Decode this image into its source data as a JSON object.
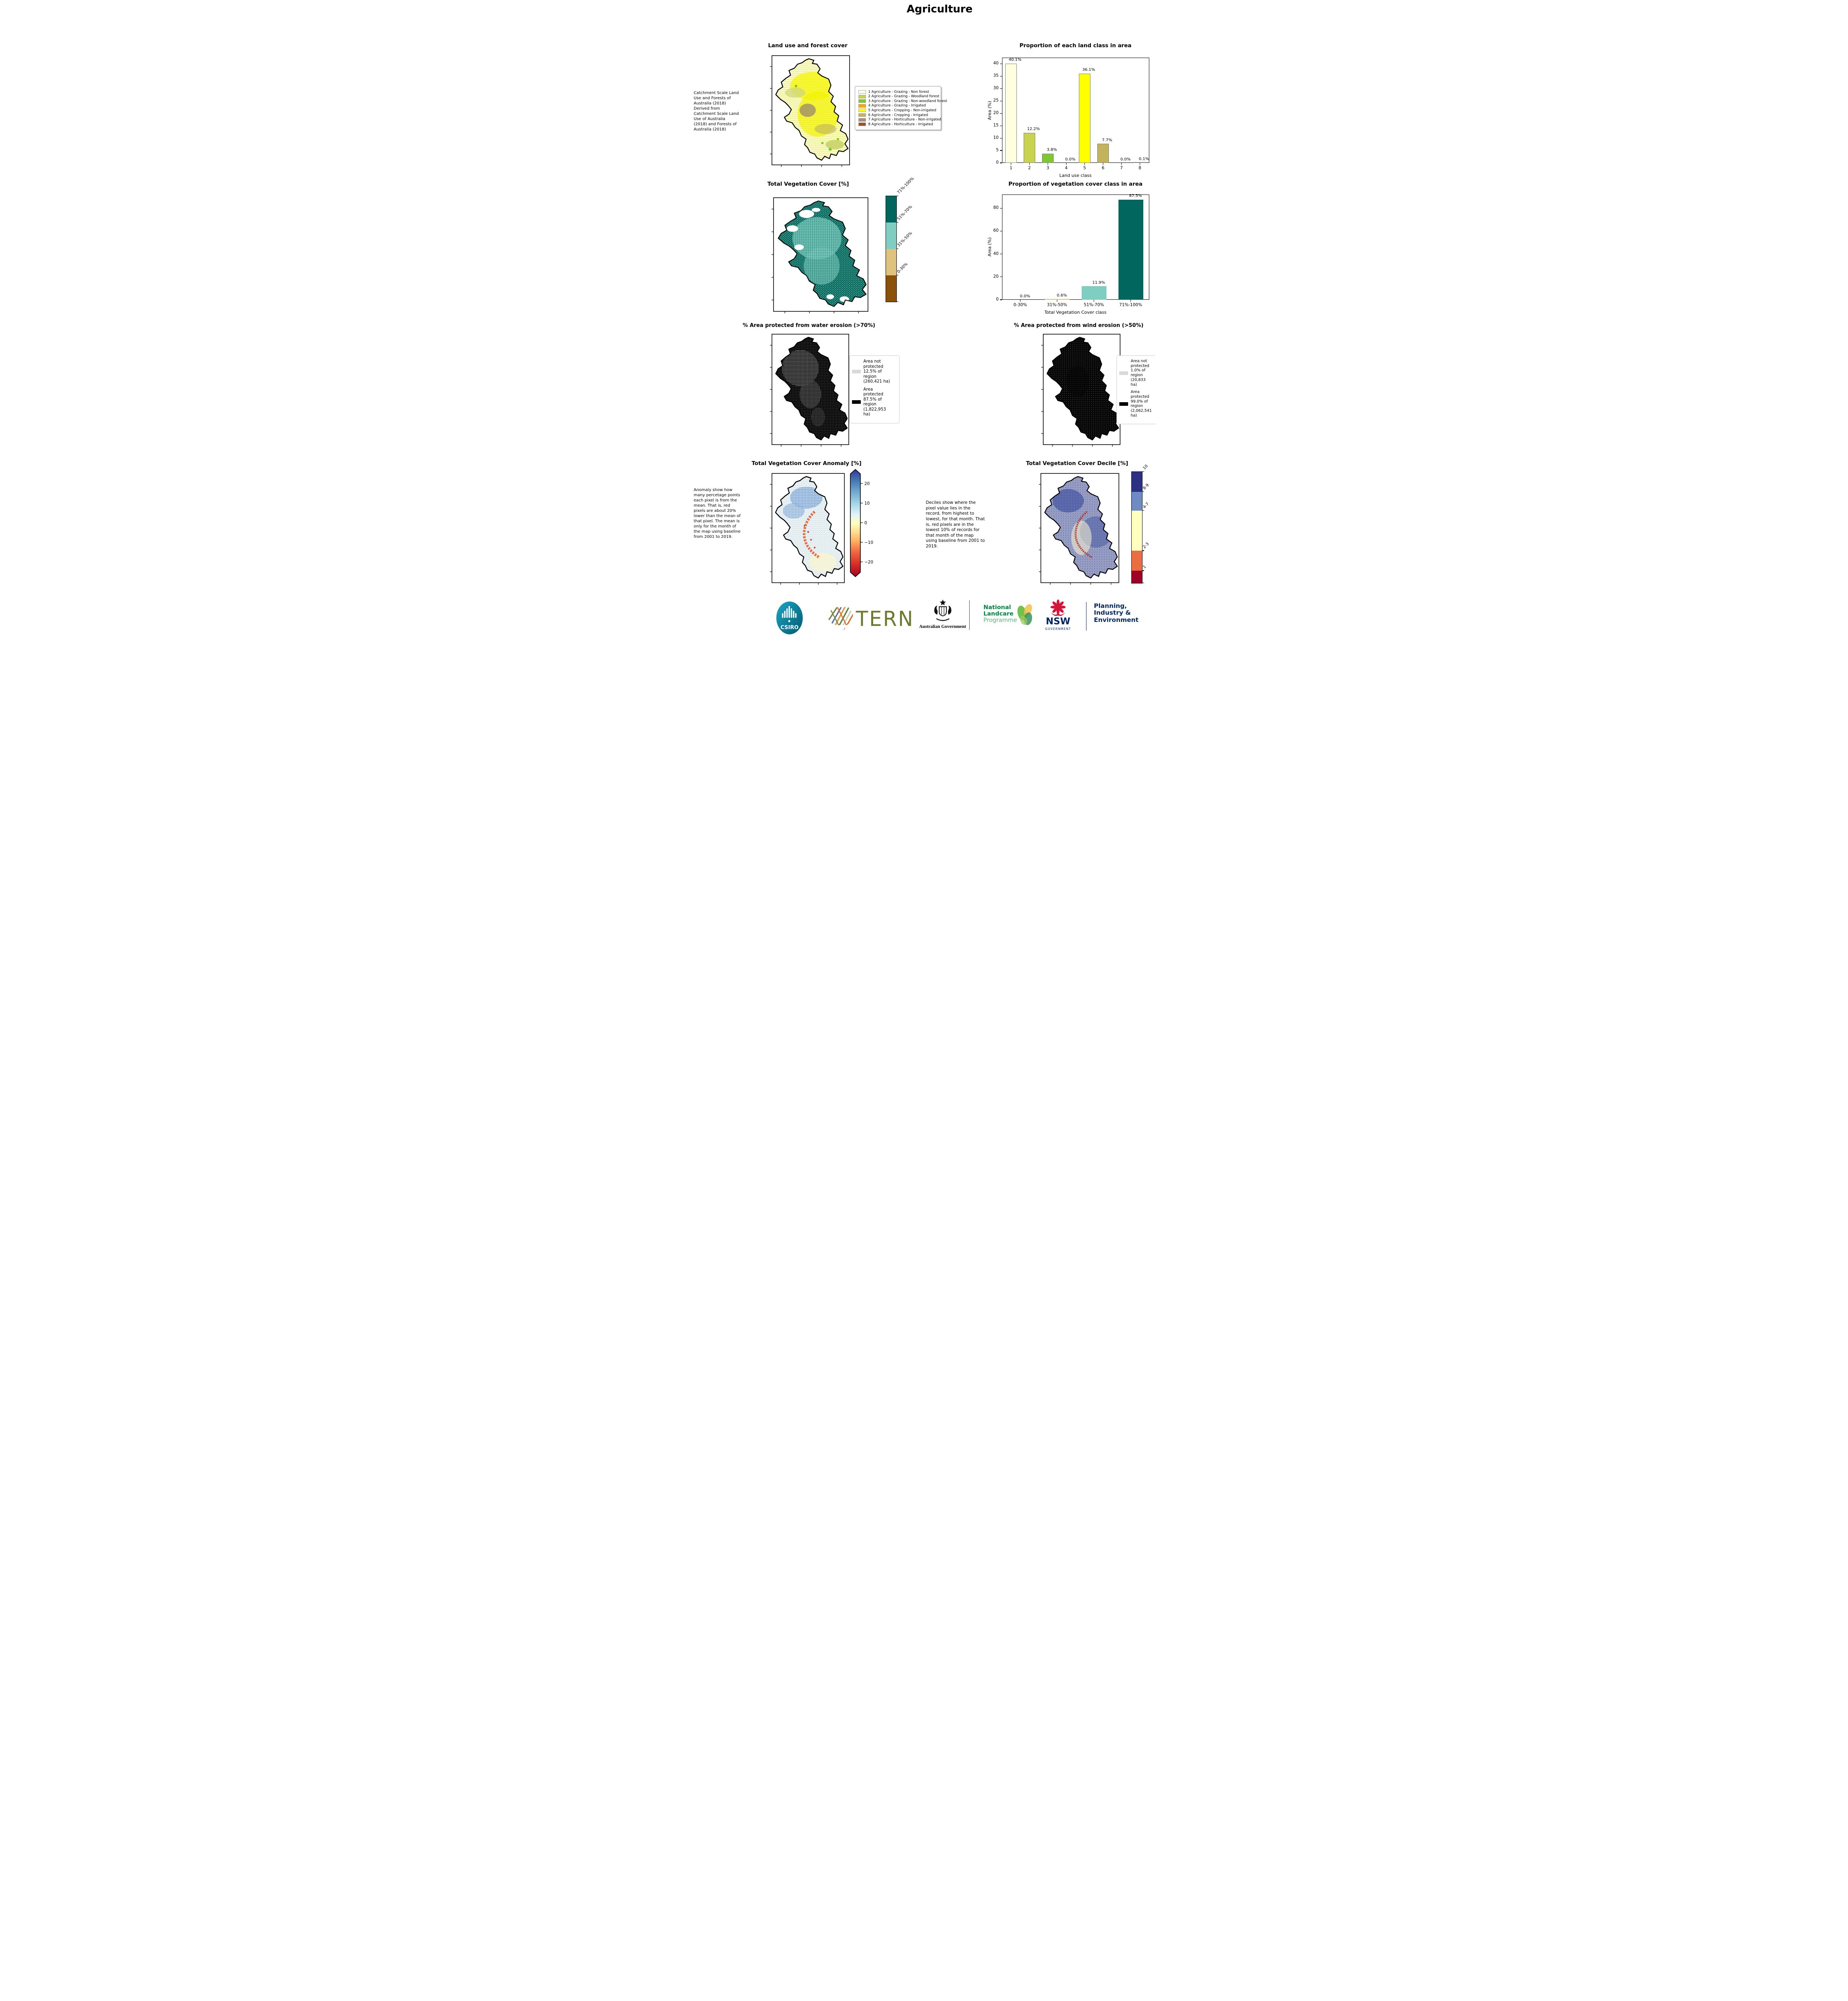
{
  "page": {
    "title": "Agriculture"
  },
  "panels": {
    "land_use_map": {
      "title": "Land use and forest cover",
      "source_note": " Catchment Scale Land Use and Forests of Australia (2018) Derived from Catchment Scale Land Use of Australia (2018) and Forests of Australia (2018)",
      "legend_items": [
        {
          "label": "1 Agriculture - Grazing - Non forest",
          "color": "#FFFFE0"
        },
        {
          "label": "2 Agriculture - Grazing - Woodland forest",
          "color": "#C9D44E"
        },
        {
          "label": "3 Agriculture - Grazing - Non-woodland forest",
          "color": "#7FC72E"
        },
        {
          "label": "4 Agriculture - Grazing - Irrigated",
          "color": "#FFA500"
        },
        {
          "label": "5 Agriculture - Cropping - Non-irrigated",
          "color": "#FFFF00"
        },
        {
          "label": "6 Agriculture - Cropping - Irrigated",
          "color": "#C3B35B"
        },
        {
          "label": "7 Agriculture - Horticulture - Non-irrigated",
          "color": "#B08A85"
        },
        {
          "label": "8 Agriculture - Horticulture - Irrigated",
          "color": "#9C5226"
        }
      ]
    },
    "veg_cover_map": {
      "title": "Total Vegetation Cover [%]",
      "colorbar": [
        {
          "label": "71%-100%",
          "color": "#01665E"
        },
        {
          "label": "51%-70%",
          "color": "#80CDC1"
        },
        {
          "label": "31%-50%",
          "color": "#DFC27D"
        },
        {
          "label": "0-30%",
          "color": "#8C5109"
        }
      ]
    },
    "water_erosion_map": {
      "title": "% Area protected from water erosion (>70%)",
      "legend": [
        {
          "color": "#D9D9D9",
          "label": "Area not protected 12.5% of region (260,421 ha)"
        },
        {
          "color": "#000000",
          "label": "Area protected 87.5% of region (1,822,953 ha)"
        }
      ]
    },
    "wind_erosion_map": {
      "title": "% Area protected from wind erosion (>50%)",
      "legend": [
        {
          "color": "#D9D9D9",
          "label": "Area not protected 1.0% of region (20,833 ha)"
        },
        {
          "color": "#000000",
          "label": "Area protected 99.0% of region (2,062,541 ha)"
        }
      ]
    },
    "anomaly_map": {
      "title": "Total Vegetation Cover Anomaly [%]",
      "note": "Anomaly show how many percetage points each pixel is from the mean. That is, red pixels are about 20% lower than the mean of that pixel. The mean is only for the month of the map using baseline from 2001 to 2019.",
      "colorbar_ticks": [
        "20",
        "10",
        "0",
        "−10",
        "−20"
      ]
    },
    "decile_map": {
      "title": "Total Vegetation Cover Decile [%]",
      "note": "Deciles show where the pixel value lies in the record, from highest to lowest, for that month. That is, red pixels are in the lowest 10% of records for that month of the map using baseline from 2001 to 2019.",
      "colorbar": [
        {
          "label": "10",
          "color": "#2D3184",
          "fraction": 0.18
        },
        {
          "label": "8-9",
          "color": "#6E8BC3",
          "fraction": 0.17
        },
        {
          "label": "4-7",
          "color": "#FFFFBF",
          "fraction": 0.36
        },
        {
          "label": "2-3",
          "color": "#EB6E43",
          "fraction": 0.18
        },
        {
          "label": "1",
          "color": "#A00026",
          "fraction": 0.11
        }
      ]
    }
  },
  "chart_data": [
    {
      "type": "bar",
      "title": "Proportion of each land class in area",
      "xlabel": "Land use class",
      "ylabel": "Area (%)",
      "categories": [
        "1",
        "2",
        "3",
        "4",
        "5",
        "6",
        "7",
        "8"
      ],
      "values": [
        40.1,
        12.2,
        3.8,
        0.0,
        36.1,
        7.7,
        0.0,
        0.1
      ],
      "value_labels": [
        "40.1%",
        "12.2%",
        "3.8%",
        "0.0%",
        "36.1%",
        "7.7%",
        "0.0%",
        "0.1%"
      ],
      "bar_colors": [
        "#FFFFE0",
        "#C9D44E",
        "#7FC72E",
        "#FFA500",
        "#FFFF00",
        "#C3B35B",
        "#B08A85",
        "#9C5226"
      ],
      "bar_edge": "#7f7f7f",
      "ylim": [
        0,
        42.5
      ],
      "yticks": [
        0,
        5,
        10,
        15,
        20,
        25,
        30,
        35,
        40
      ],
      "grid": false,
      "legend_position": "none"
    },
    {
      "type": "bar",
      "title": "Proportion of vegetation cover class in area",
      "xlabel": "Total Vegetation Cover class",
      "ylabel": "Area (%)",
      "categories": [
        "0-30%",
        "31%-50%",
        "51%-70%",
        "71%-100%"
      ],
      "values": [
        0.0,
        0.6,
        11.9,
        87.5
      ],
      "value_labels": [
        "0.0%",
        "0.6%",
        "11.9%",
        "87.5%"
      ],
      "bar_colors": [
        "#8C5109",
        "#DFC27D",
        "#80CDC1",
        "#01665E"
      ],
      "bar_edge": null,
      "ylim": [
        0,
        92
      ],
      "yticks": [
        0,
        20,
        40,
        60,
        80
      ],
      "grid": false,
      "legend_position": "none"
    }
  ],
  "footer": {
    "csiro": "CSIRO",
    "tern": "TERN",
    "aus_gov": "Australian Government",
    "landcare_line1": "National",
    "landcare_line2": "Landcare",
    "landcare_line3": "Programme",
    "nsw": "NSW",
    "nsw_sub": "GOVERNMENT",
    "dept_line1": "Planning,",
    "dept_line2": "Industry &",
    "dept_line3": "Environment"
  },
  "colors": {
    "nsw_navy": "#002664",
    "nsw_red": "#D7153A",
    "landcare_green": "#00843D",
    "landcare_light": "#58B47C",
    "tern_olive": "#6E7930",
    "csiro_teal": "#00788C",
    "protected_black": "#000000",
    "not_protected_gray": "#D9D9D9"
  }
}
